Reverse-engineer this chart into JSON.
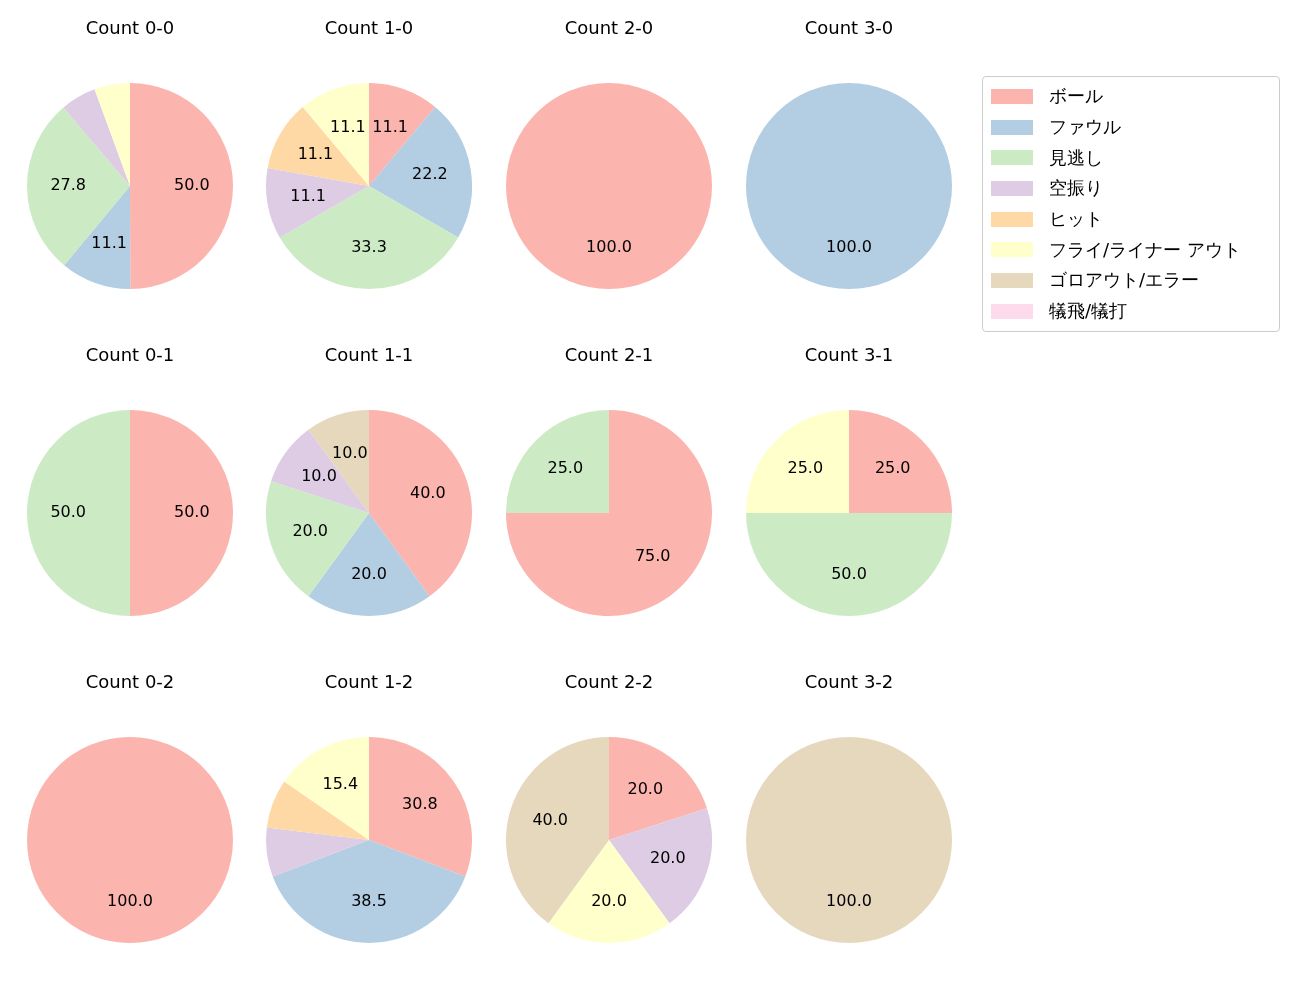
{
  "chart_data": [
    {
      "type": "pie",
      "title": "Count 0-0",
      "categories": [
        null,
        null,
        null,
        null,
        null
      ],
      "values": [
        50.0,
        11.1,
        27.8,
        5.6,
        5.6
      ],
      "value_labels": [
        "50.0",
        "11.1",
        "27.8",
        null,
        null
      ],
      "colors": [
        "#fbb4ae",
        "#b3cde3",
        "#ccebc5",
        "#decbe4",
        "#ffffcc"
      ]
    },
    {
      "type": "pie",
      "title": "Count 1-0",
      "categories": [
        null,
        null,
        null,
        null,
        null,
        null
      ],
      "values": [
        11.1,
        22.2,
        33.3,
        11.1,
        11.1,
        11.1
      ],
      "value_labels": [
        "11.1",
        "22.2",
        "33.3",
        "11.1",
        "11.1",
        "11.1"
      ],
      "colors": [
        "#fbb4ae",
        "#b3cde3",
        "#ccebc5",
        "#decbe4",
        "#fed9a6",
        "#ffffcc"
      ]
    },
    {
      "type": "pie",
      "title": "Count 2-0",
      "categories": [
        null
      ],
      "values": [
        100.0
      ],
      "value_labels": [
        "100.0"
      ],
      "colors": [
        "#fbb4ae"
      ]
    },
    {
      "type": "pie",
      "title": "Count 3-0",
      "categories": [
        "ボール",
        "ファウル",
        "見逃し",
        "空振り",
        "ヒット",
        "フライ/ライナー アウト",
        "ゴロアウト/エラー",
        "犠飛/犠打"
      ],
      "values": [
        0,
        100.0,
        0,
        0,
        0,
        0,
        0,
        0
      ],
      "value_labels": [
        null,
        "100.0",
        null,
        null,
        null,
        null,
        null,
        null
      ],
      "colors": [
        "#fbb4ae",
        "#b3cde3",
        "#ccebc5",
        "#decbe4",
        "#fed9a6",
        "#ffffcc",
        "#e5d8bd",
        "#fddaec"
      ],
      "legend": "right"
    },
    {
      "type": "pie",
      "title": "Count 0-1",
      "categories": [
        null,
        null
      ],
      "values": [
        50.0,
        50.0
      ],
      "value_labels": [
        "50.0",
        "50.0"
      ],
      "colors": [
        "#fbb4ae",
        "#ccebc5"
      ]
    },
    {
      "type": "pie",
      "title": "Count 1-1",
      "categories": [
        null,
        null,
        null,
        null,
        null
      ],
      "values": [
        40.0,
        20.0,
        20.0,
        10.0,
        10.0
      ],
      "value_labels": [
        "40.0",
        "20.0",
        "20.0",
        "10.0",
        "10.0"
      ],
      "colors": [
        "#fbb4ae",
        "#b3cde3",
        "#ccebc5",
        "#decbe4",
        "#e5d8bd"
      ]
    },
    {
      "type": "pie",
      "title": "Count 2-1",
      "categories": [
        null,
        null
      ],
      "values": [
        75.0,
        25.0
      ],
      "value_labels": [
        "75.0",
        "25.0"
      ],
      "colors": [
        "#fbb4ae",
        "#ccebc5"
      ]
    },
    {
      "type": "pie",
      "title": "Count 3-1",
      "categories": [
        null,
        null,
        null
      ],
      "values": [
        25.0,
        50.0,
        25.0
      ],
      "value_labels": [
        "25.0",
        "50.0",
        "25.0"
      ],
      "colors": [
        "#fbb4ae",
        "#ccebc5",
        "#ffffcc"
      ]
    },
    {
      "type": "pie",
      "title": "Count 0-2",
      "categories": [
        null
      ],
      "values": [
        100.0
      ],
      "value_labels": [
        "100.0"
      ],
      "colors": [
        "#fbb4ae"
      ]
    },
    {
      "type": "pie",
      "title": "Count 1-2",
      "categories": [
        null,
        null,
        null,
        null,
        null
      ],
      "values": [
        30.8,
        38.5,
        7.7,
        7.7,
        15.4
      ],
      "value_labels": [
        "30.8",
        "38.5",
        null,
        null,
        "15.4"
      ],
      "colors": [
        "#fbb4ae",
        "#b3cde3",
        "#decbe4",
        "#fed9a6",
        "#ffffcc"
      ]
    },
    {
      "type": "pie",
      "title": "Count 2-2",
      "categories": [
        null,
        null,
        null,
        null
      ],
      "values": [
        20.0,
        20.0,
        20.0,
        40.0
      ],
      "value_labels": [
        "20.0",
        "20.0",
        "20.0",
        "40.0"
      ],
      "colors": [
        "#fbb4ae",
        "#decbe4",
        "#ffffcc",
        "#e5d8bd"
      ]
    },
    {
      "type": "pie",
      "title": "Count 3-2",
      "categories": [
        null
      ],
      "values": [
        100.0
      ],
      "value_labels": [
        "100.0"
      ],
      "colors": [
        "#e5d8bd"
      ]
    }
  ]
}
